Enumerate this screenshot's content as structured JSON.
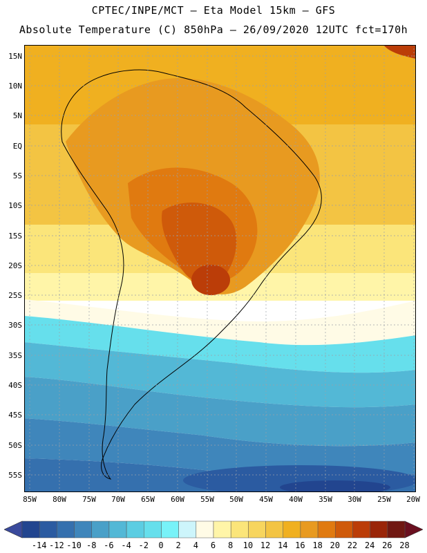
{
  "header": {
    "line1": "CPTEC/INPE/MCT –  Eta Model 15km – GFS",
    "line2": "Absolute Temperature (C) 850hPa – 26/09/2020 12UTC fct=170h"
  },
  "lat_labels": [
    "15N",
    "10N",
    "5N",
    "EQ",
    "5S",
    "10S",
    "15S",
    "20S",
    "25S",
    "30S",
    "35S",
    "40S",
    "45S",
    "50S",
    "55S"
  ],
  "lon_labels": [
    "85W",
    "80W",
    "75W",
    "70W",
    "65W",
    "60W",
    "55W",
    "50W",
    "45W",
    "40W",
    "35W",
    "30W",
    "25W",
    "20W"
  ],
  "colorbar": {
    "labels": [
      "-14",
      "-12",
      "-10",
      "-8",
      "-6",
      "-4",
      "-2",
      "0",
      "2",
      "4",
      "6",
      "8",
      "10",
      "12",
      "14",
      "16",
      "18",
      "20",
      "22",
      "24",
      "26",
      "28"
    ],
    "min_color": "#3a4a9c",
    "max_color": "#6a0f1f",
    "colors": [
      "#22458f",
      "#2b5ba1",
      "#3570ae",
      "#3f86bb",
      "#4aa0c8",
      "#53b8d6",
      "#5ccde2",
      "#66dfec",
      "#78f2f8",
      "#cdf5fb",
      "#fffbe6",
      "#fff5a8",
      "#fbe57a",
      "#f7d55e",
      "#f3c443",
      "#f0b020",
      "#e89a20",
      "#e07a10",
      "#cf5a0a",
      "#bb3d08",
      "#9a2508",
      "#701812"
    ]
  }
}
